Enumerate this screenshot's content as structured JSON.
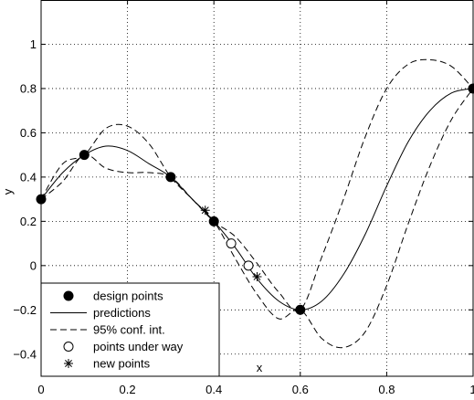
{
  "chart_data": {
    "type": "line",
    "title": "",
    "xlabel": "x",
    "ylabel": "y",
    "xlim": [
      0,
      1
    ],
    "ylim": [
      -0.5,
      1.2
    ],
    "xticks": [
      0,
      0.2,
      0.4,
      0.6,
      0.8,
      1
    ],
    "xtick_labels": [
      "0",
      "0.2",
      "0.4",
      "0.6",
      "0.8",
      "1"
    ],
    "yticks": [
      -0.4,
      -0.2,
      0,
      0.2,
      0.4,
      0.6,
      0.8,
      1
    ],
    "ytick_labels": [
      "−0.4",
      "−0.2",
      "0",
      "0.2",
      "0.4",
      "0.6",
      "0.8",
      "1"
    ],
    "grid": true,
    "legend_position": "bottom-left",
    "series": [
      {
        "name": "design points",
        "style": "filled-circle",
        "x": [
          0,
          0.1,
          0.3,
          0.4,
          0.6,
          1.0
        ],
        "y": [
          0.3,
          0.5,
          0.4,
          0.2,
          -0.2,
          0.8
        ]
      },
      {
        "name": "predictions",
        "style": "solid",
        "x": [
          0,
          0.05,
          0.1,
          0.15,
          0.2,
          0.25,
          0.3,
          0.35,
          0.4,
          0.45,
          0.5,
          0.55,
          0.6,
          0.65,
          0.7,
          0.75,
          0.8,
          0.85,
          0.9,
          0.95,
          1.0
        ],
        "y": [
          0.3,
          0.42,
          0.5,
          0.54,
          0.52,
          0.46,
          0.4,
          0.3,
          0.2,
          0.08,
          -0.06,
          -0.16,
          -0.2,
          -0.16,
          -0.04,
          0.14,
          0.36,
          0.56,
          0.7,
          0.78,
          0.8
        ]
      },
      {
        "name": "95% conf. int.",
        "style": "dashed",
        "x": [
          0,
          0.05,
          0.1,
          0.15,
          0.2,
          0.25,
          0.3,
          0.35,
          0.4,
          0.45,
          0.5,
          0.55,
          0.6,
          0.65,
          0.7,
          0.75,
          0.8,
          0.85,
          0.9,
          0.95,
          1.0
        ],
        "y": [
          0.3,
          0.46,
          0.5,
          0.62,
          0.63,
          0.55,
          0.4,
          0.3,
          0.2,
          0.13,
          0.01,
          -0.12,
          -0.2,
          0.04,
          0.3,
          0.58,
          0.8,
          0.91,
          0.93,
          0.9,
          0.8
        ]
      },
      {
        "name": "95% conf. int. (lower)",
        "style": "dashed",
        "x": [
          0,
          0.05,
          0.1,
          0.15,
          0.2,
          0.25,
          0.3,
          0.35,
          0.4,
          0.45,
          0.5,
          0.55,
          0.6,
          0.65,
          0.7,
          0.75,
          0.8,
          0.85,
          0.9,
          0.95,
          1.0
        ],
        "y": [
          0.3,
          0.38,
          0.5,
          0.44,
          0.42,
          0.42,
          0.4,
          0.3,
          0.2,
          0.03,
          -0.13,
          -0.24,
          -0.2,
          -0.33,
          -0.37,
          -0.3,
          -0.09,
          0.19,
          0.45,
          0.66,
          0.8
        ]
      },
      {
        "name": "points under way",
        "style": "open-circle",
        "x": [
          0.44,
          0.48
        ],
        "y": [
          0.1,
          0.0
        ]
      },
      {
        "name": "new points",
        "style": "asterisk",
        "x": [
          0.38,
          0.5
        ],
        "y": [
          0.25,
          -0.05
        ]
      }
    ],
    "legend": [
      {
        "label": "design points",
        "style": "filled-circle"
      },
      {
        "label": "predictions",
        "style": "solid"
      },
      {
        "label": "95% conf. int.",
        "style": "dashed"
      },
      {
        "label": "points under way",
        "style": "open-circle"
      },
      {
        "label": "new points",
        "style": "asterisk"
      }
    ]
  }
}
